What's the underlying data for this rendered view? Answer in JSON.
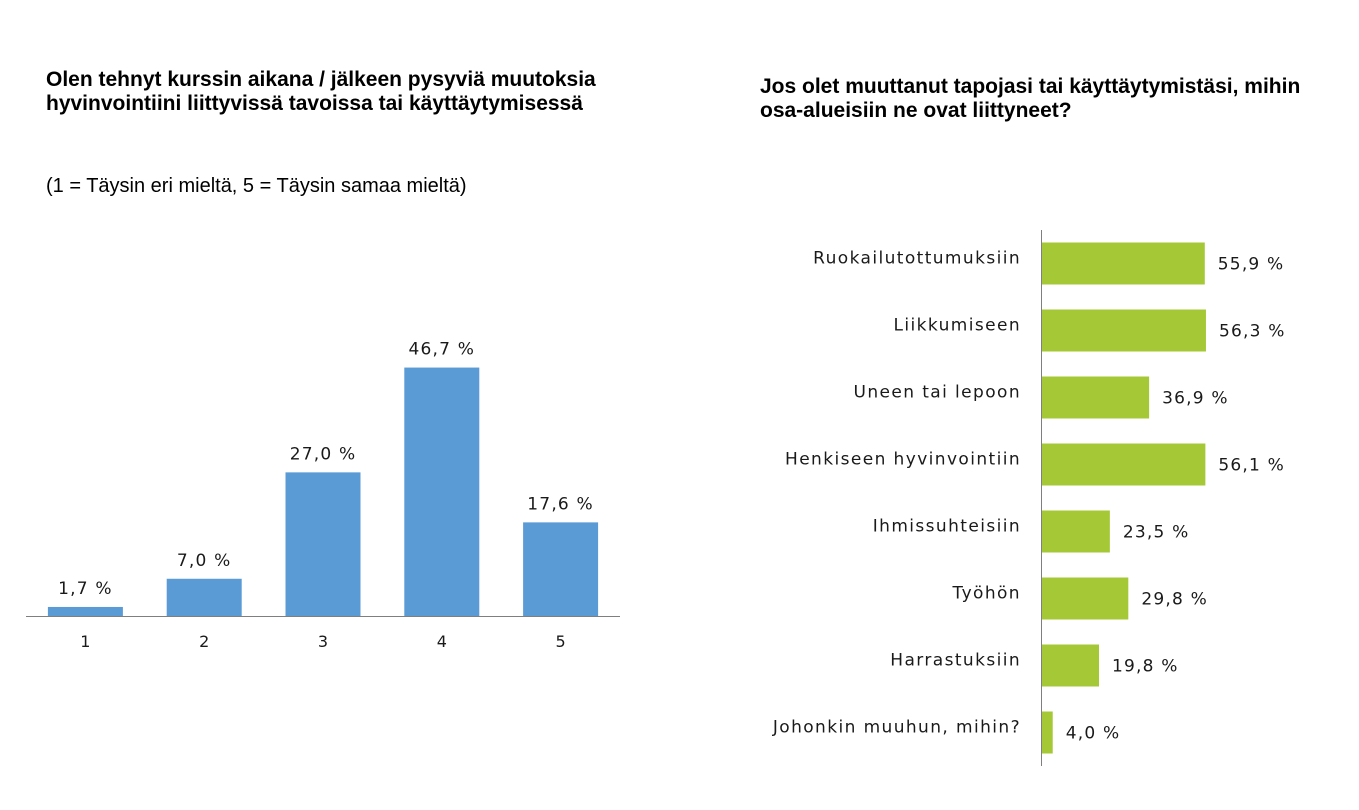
{
  "colors": {
    "left_bar": "#5b9bd5",
    "right_bar": "#a5c936",
    "axis": "#7f7f7f"
  },
  "left": {
    "title": "Olen tehnyt kurssin aikana / jälkeen pysyviä muutoksia hyvinvointiini liittyvissä tavoissa tai käyttäytymisessä",
    "subtitle": "(1 = Täysin eri mieltä, 5 = Täysin samaa mieltä)"
  },
  "right": {
    "title": "Jos olet muuttanut tapojasi tai käyttäytymistäsi, mihin osa-alueisiin ne ovat liittyneet?"
  },
  "chart_data": [
    {
      "type": "bar",
      "orientation": "vertical",
      "title": "Olen tehnyt kurssin aikana / jälkeen pysyviä muutoksia hyvinvointiini liittyvissä tavoissa tai käyttäytymisessä",
      "subtitle": "(1 = Täysin eri mieltä, 5 = Täysin samaa mieltä)",
      "categories": [
        "1",
        "2",
        "3",
        "4",
        "5"
      ],
      "values": [
        1.7,
        7.0,
        27.0,
        46.7,
        17.6
      ],
      "value_labels": [
        "1,7 %",
        "7,0 %",
        "27,0 %",
        "46,7 %",
        "17,6 %"
      ],
      "unit": "%",
      "ylim": [
        0,
        50
      ],
      "grid": false,
      "color": "#5b9bd5"
    },
    {
      "type": "bar",
      "orientation": "horizontal",
      "title": "Jos olet muuttanut tapojasi tai käyttäytymistäsi, mihin osa-alueisiin ne ovat liittyneet?",
      "categories": [
        "Ruokailutottumuksiin",
        "Liikkumiseen",
        "Uneen tai lepoon",
        "Henkiseen hyvinvointiin",
        "Ihmissuhteisiin",
        "Työhön",
        "Harrastuksiin",
        "Johonkin muuhun, mihin?"
      ],
      "values": [
        55.9,
        56.3,
        36.9,
        56.1,
        23.5,
        29.8,
        19.8,
        4.0
      ],
      "value_labels": [
        "55,9 %",
        "56,3 %",
        "36,9 %",
        "56,1 %",
        "23,5 %",
        "29,8 %",
        "19,8 %",
        "4,0 %"
      ],
      "unit": "%",
      "xlim": [
        0,
        60
      ],
      "grid": false,
      "color": "#a5c936"
    }
  ]
}
